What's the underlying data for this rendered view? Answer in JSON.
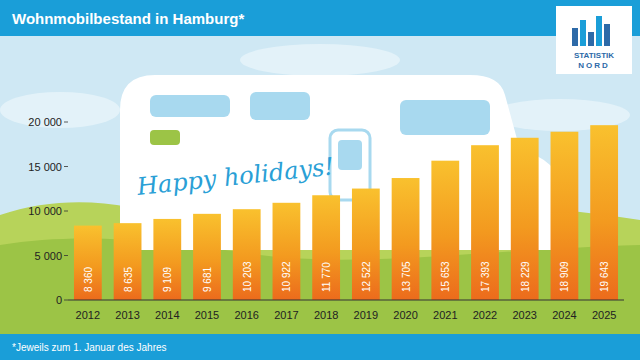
{
  "chart_data": {
    "type": "bar",
    "title": "Wohnmobilbestand in Hamburg*",
    "annotations": [
      "Happy holidays!",
      "*Jeweils zum 1. Januar des Jahres"
    ],
    "logo": [
      "STATISTIK",
      "NORD"
    ],
    "categories": [
      "2012",
      "2013",
      "2014",
      "2015",
      "2016",
      "2017",
      "2018",
      "2019",
      "2020",
      "2021",
      "2022",
      "2023",
      "2024",
      "2025"
    ],
    "values": [
      8360,
      8635,
      9109,
      9681,
      10203,
      10922,
      11770,
      12522,
      13705,
      15653,
      17393,
      18229,
      18909,
      19643
    ],
    "value_labels": [
      "8 360",
      "8 635",
      "9 109",
      "9 681",
      "10 203",
      "10 922",
      "11 770",
      "12 522",
      "13 705",
      "15 653",
      "17 393",
      "18 229",
      "18 909",
      "19 643"
    ],
    "color": "#f39a1f",
    "ylim": [
      0,
      20000
    ],
    "yticks": [
      0,
      {
        "value": 5000,
        "label": "5 000"
      },
      {
        "value": 10000,
        "label": "10 000"
      },
      {
        "value": 15000,
        "label": "15 000"
      },
      {
        "value": 20000,
        "label": "20 000"
      }
    ],
    "grid": false,
    "data_labels": true
  }
}
